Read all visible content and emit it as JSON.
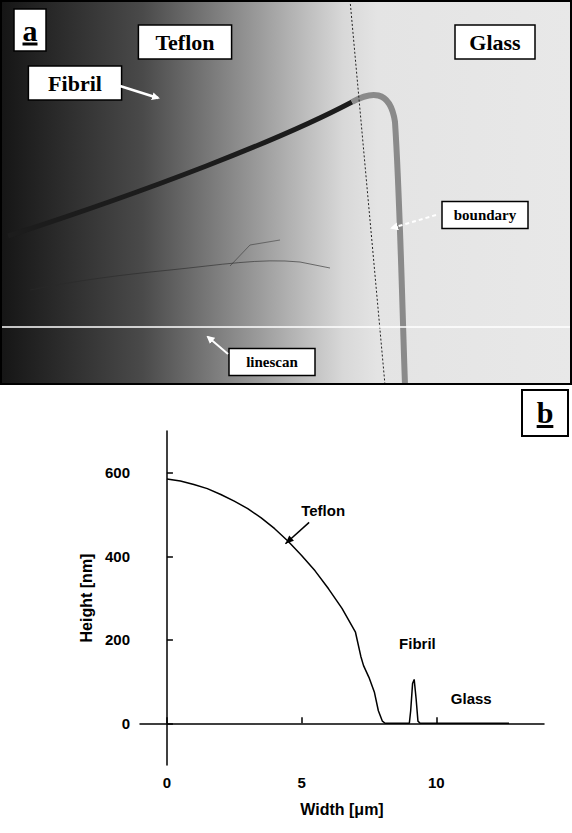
{
  "image_panel": {
    "letter": "a",
    "labels": {
      "teflon": "Teflon",
      "glass": "Glass",
      "fibril": "Fibril",
      "boundary": "boundary",
      "linescan": "linescan"
    }
  },
  "chart_data": {
    "type": "line",
    "title": "b",
    "x_label": "Width [μm]",
    "y_label": "Height [nm]",
    "x": [
      0,
      0.5,
      1,
      1.5,
      2,
      2.5,
      3,
      3.5,
      4,
      4.5,
      5,
      5.5,
      6,
      6.5,
      7,
      7.2,
      7.3,
      7.5,
      7.7,
      7.85,
      8.0,
      8.1,
      9.0,
      9.05,
      9.12,
      9.18,
      9.25,
      9.32,
      9.4,
      12.7
    ],
    "values": [
      585,
      580,
      572,
      562,
      548,
      532,
      514,
      492,
      466,
      436,
      402,
      365,
      322,
      275,
      218,
      160,
      138,
      110,
      75,
      30,
      5,
      0,
      0,
      30,
      95,
      105,
      60,
      5,
      0,
      0
    ],
    "color": "#000000",
    "xlim": [
      -1,
      14
    ],
    "xticks": [
      0,
      5,
      10
    ],
    "ylim": [
      -100,
      700
    ],
    "yticks": [
      0,
      200,
      400,
      600
    ],
    "grid": false,
    "annotations": [
      {
        "text": "Teflon",
        "x": 5.8,
        "y": 510,
        "arrow_to": [
          4.4,
          430
        ]
      },
      {
        "text": "Fibril",
        "x": 9.3,
        "y": 190
      },
      {
        "text": "Glass",
        "x": 11.3,
        "y": 60
      }
    ]
  }
}
